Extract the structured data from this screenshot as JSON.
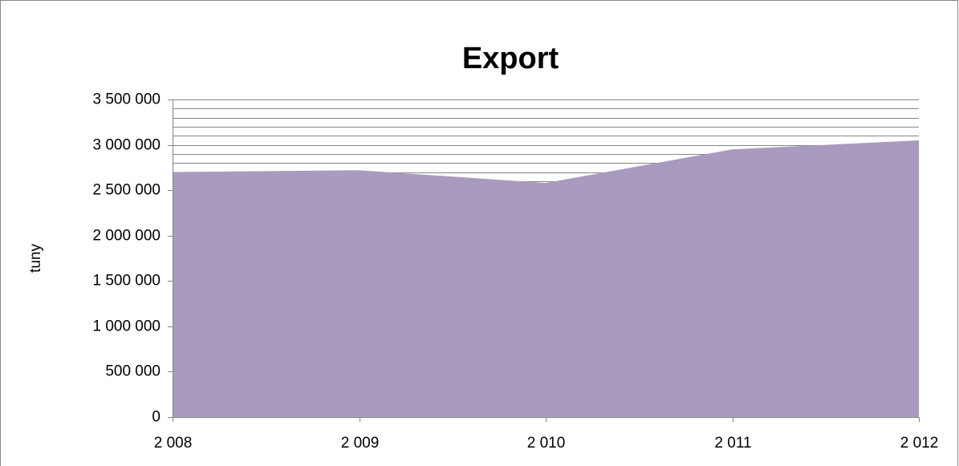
{
  "chart_data": {
    "type": "area",
    "title": "Export",
    "y_label": "tuny",
    "x": [
      2008,
      2009,
      2010,
      2011,
      2012
    ],
    "values": [
      2700000,
      2720000,
      2580000,
      2950000,
      3050000
    ],
    "color": "#a99bbf",
    "xlim": [
      2008,
      2012
    ],
    "xticks": [
      {
        "value": 2008,
        "label": "2 008"
      },
      {
        "value": 2009,
        "label": "2 009"
      },
      {
        "value": 2010,
        "label": "2 010"
      },
      {
        "value": 2011,
        "label": "2 011"
      },
      {
        "value": 2012,
        "label": "2 012"
      }
    ],
    "ylim": [
      0,
      3500000
    ],
    "yticks": [
      0,
      {
        "value": 500000,
        "label": "500 000"
      },
      {
        "value": 1000000,
        "label": "1 000 000"
      },
      {
        "value": 1500000,
        "label": "1 500 000"
      },
      {
        "value": 2000000,
        "label": "2 000 000"
      },
      {
        "value": 2500000,
        "label": "2 500 000"
      },
      {
        "value": 3000000,
        "label": "3 000 000"
      },
      {
        "value": 3500000,
        "label": "3 500 000"
      }
    ],
    "yminorticks": [
      2600000,
      2700000,
      2800000,
      2900000,
      3100000,
      3200000,
      3300000,
      3400000
    ],
    "grid": true
  }
}
